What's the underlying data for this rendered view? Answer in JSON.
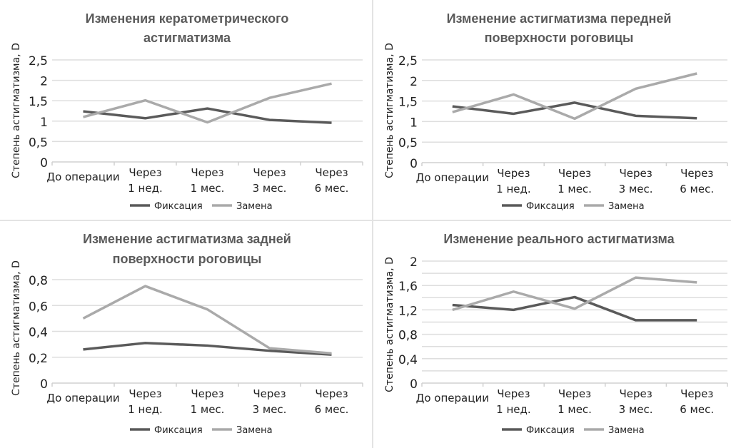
{
  "colors": {
    "series_fixation": "#5a5a5a",
    "series_replacement": "#aaaaaa",
    "grid": "#dedede",
    "title": "#5a5a5a"
  },
  "chart_data": [
    {
      "type": "line",
      "title": [
        "Изменения кератометрического",
        "астигматизма"
      ],
      "xlabel": "",
      "ylabel": "Степень астигматизма, D",
      "categories": [
        [
          "До операции"
        ],
        [
          "Через",
          "1 нед."
        ],
        [
          "Через",
          "1 мес."
        ],
        [
          "Через",
          "3 мес."
        ],
        [
          "Через",
          "6 мес."
        ]
      ],
      "ylim": [
        0,
        2.5
      ],
      "yticks": [
        0,
        0.5,
        1,
        1.5,
        2,
        2.5
      ],
      "ytick_labels": [
        "0",
        "0,5",
        "1",
        "1,5",
        "2",
        "2,5"
      ],
      "grid_step": 0.5,
      "grid": true,
      "legend": "bottom",
      "series": [
        {
          "name": "Фиксация",
          "values": [
            1.24,
            1.07,
            1.31,
            1.03,
            0.96
          ]
        },
        {
          "name": "Замена",
          "values": [
            1.1,
            1.51,
            0.97,
            1.57,
            1.92
          ]
        }
      ]
    },
    {
      "type": "line",
      "title": [
        "Изменение астигматизма передней",
        "поверхности роговицы"
      ],
      "xlabel": "",
      "ylabel": "Степень астигматизма, D",
      "categories": [
        [
          "До операции"
        ],
        [
          "Через",
          "1 нед."
        ],
        [
          "Через",
          "1 мес."
        ],
        [
          "Через",
          "3 мес."
        ],
        [
          "Через",
          "6 мес."
        ]
      ],
      "ylim": [
        0,
        2.5
      ],
      "yticks": [
        0,
        0.5,
        1,
        1.5,
        2,
        2.5
      ],
      "ytick_labels": [
        "0",
        "0,5",
        "1",
        "1,5",
        "2",
        "2,5"
      ],
      "grid_step": 0.5,
      "grid": true,
      "legend": "bottom",
      "series": [
        {
          "name": "Фиксация",
          "values": [
            1.37,
            1.19,
            1.46,
            1.14,
            1.08
          ]
        },
        {
          "name": "Замена",
          "values": [
            1.23,
            1.66,
            1.07,
            1.8,
            2.17
          ]
        }
      ]
    },
    {
      "type": "line",
      "title": [
        "Изменение астигматизма задней",
        "поверхности роговицы"
      ],
      "xlabel": "",
      "ylabel": "Степень астигматизма, D",
      "categories": [
        [
          "До операции"
        ],
        [
          "Через",
          "1 нед."
        ],
        [
          "Через",
          "1 мес."
        ],
        [
          "Через",
          "3 мес."
        ],
        [
          "Через",
          "6 мес."
        ]
      ],
      "ylim": [
        0,
        1.0
      ],
      "yticks": [
        0,
        0.2,
        0.4,
        0.6,
        0.8
      ],
      "ytick_labels": [
        "0",
        "0,2",
        "0,4",
        "0,6",
        "0,8"
      ],
      "grid_step": 0.2,
      "grid": true,
      "legend": "bottom",
      "series": [
        {
          "name": "Фиксация",
          "values": [
            0.26,
            0.31,
            0.29,
            0.25,
            0.22
          ]
        },
        {
          "name": "Замена",
          "values": [
            0.5,
            0.75,
            0.57,
            0.27,
            0.23
          ]
        }
      ]
    },
    {
      "type": "line",
      "title": [
        "Изменение реального астигматизма"
      ],
      "xlabel": "",
      "ylabel": "Степень астигматизма, D",
      "categories": [
        [
          "До операции"
        ],
        [
          "Через",
          "1 нед."
        ],
        [
          "Через",
          "1 мес."
        ],
        [
          "Через",
          "3 мес."
        ],
        [
          "Через",
          "6 мес."
        ]
      ],
      "ylim": [
        0,
        2
      ],
      "yticks": [
        0,
        0.4,
        0.8,
        1.2,
        1.6,
        2
      ],
      "ytick_labels": [
        "0",
        "0,4",
        "0,8",
        "1,2",
        "1,6",
        "2"
      ],
      "grid_step": 0.2,
      "grid": true,
      "legend": "bottom",
      "series": [
        {
          "name": "Фиксация",
          "values": [
            1.28,
            1.2,
            1.41,
            1.03,
            1.03
          ]
        },
        {
          "name": "Замена",
          "values": [
            1.2,
            1.5,
            1.22,
            1.73,
            1.65
          ]
        }
      ]
    }
  ]
}
